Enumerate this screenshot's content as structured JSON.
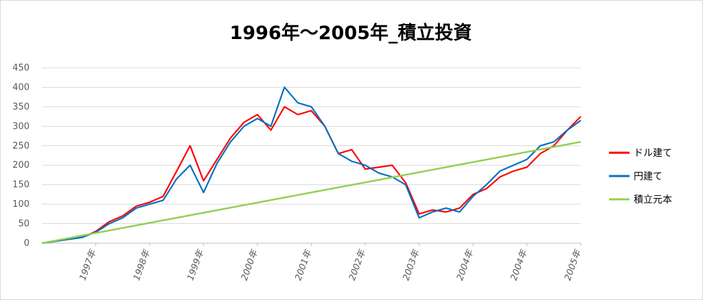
{
  "chart_data": {
    "type": "line",
    "title": "1996年～2005年_積立投資",
    "xlabel": "",
    "ylabel": "",
    "ylim": [
      0,
      450
    ],
    "y_ticks": [
      "0",
      "50",
      "100",
      "150",
      "200",
      "250",
      "300",
      "350",
      "400",
      "450"
    ],
    "x_tick_labels": [
      "1997年",
      "1998年",
      "1999年",
      "2000年",
      "2001年",
      "2002年",
      "2003年",
      "2004年",
      "2004年",
      "2005年"
    ],
    "grid": "horizontal",
    "legend_position": "right",
    "x": [
      1996.0,
      1996.25,
      1996.5,
      1996.75,
      1997.0,
      1997.25,
      1997.5,
      1997.75,
      1998.0,
      1998.25,
      1998.5,
      1998.75,
      1999.0,
      1999.25,
      1999.5,
      1999.75,
      2000.0,
      2000.25,
      2000.5,
      2000.75,
      2001.0,
      2001.25,
      2001.5,
      2001.75,
      2002.0,
      2002.25,
      2002.5,
      2002.75,
      2003.0,
      2003.25,
      2003.5,
      2003.75,
      2004.0,
      2004.25,
      2004.5,
      2004.75,
      2005.0,
      2005.25,
      2005.5,
      2005.75,
      2006.0
    ],
    "series": [
      {
        "name": "ドル建て",
        "color": "#ff0000",
        "values": [
          0,
          5,
          10,
          15,
          30,
          55,
          70,
          95,
          105,
          120,
          185,
          250,
          160,
          215,
          270,
          310,
          330,
          290,
          350,
          330,
          340,
          300,
          230,
          240,
          190,
          195,
          200,
          155,
          75,
          85,
          80,
          90,
          125,
          140,
          170,
          185,
          195,
          230,
          250,
          290,
          325
        ]
      },
      {
        "name": "円建て",
        "color": "#0070c0",
        "values": [
          0,
          5,
          10,
          15,
          28,
          50,
          65,
          90,
          100,
          110,
          165,
          200,
          130,
          205,
          260,
          300,
          320,
          300,
          400,
          360,
          350,
          300,
          230,
          210,
          200,
          180,
          170,
          150,
          65,
          80,
          90,
          80,
          120,
          150,
          185,
          200,
          215,
          250,
          260,
          290,
          315
        ]
      },
      {
        "name": "積立元本",
        "color": "#92d050",
        "values": [
          0,
          6.5,
          13,
          19.5,
          26,
          32.5,
          39,
          45.5,
          52,
          58.5,
          65,
          71.5,
          78,
          84.5,
          91,
          97.5,
          104,
          110.5,
          117,
          123.5,
          130,
          136.5,
          143,
          149.5,
          156,
          162.5,
          169,
          175.5,
          182,
          188.5,
          195,
          201.5,
          208,
          214.5,
          221,
          227.5,
          234,
          240.5,
          247,
          253.5,
          260
        ]
      }
    ]
  }
}
